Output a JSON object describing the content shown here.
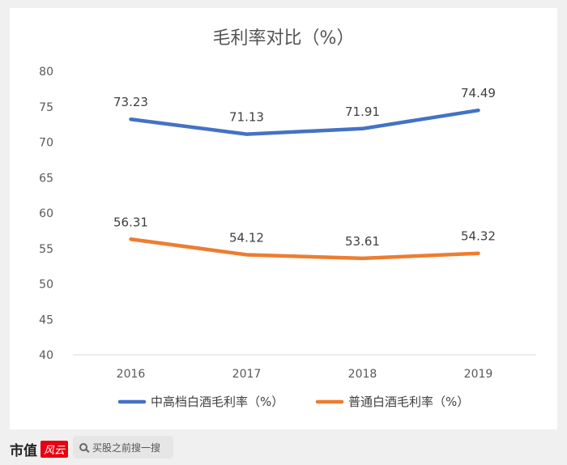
{
  "chart_data": {
    "type": "line",
    "title": "毛利率对比（%）",
    "categories": [
      "2016",
      "2017",
      "2018",
      "2019"
    ],
    "ylim": [
      40,
      80
    ],
    "yticks": [
      40,
      45,
      50,
      55,
      60,
      65,
      70,
      75,
      80
    ],
    "grid": false,
    "legend": "bottom",
    "series": [
      {
        "name": "中高档白酒毛利率（%）",
        "color": "#4472c4",
        "values": [
          73.23,
          71.13,
          71.91,
          74.49
        ]
      },
      {
        "name": "普通白酒毛利率（%）",
        "color": "#ed7d31",
        "values": [
          56.31,
          54.12,
          53.61,
          54.32
        ]
      }
    ]
  },
  "footer": {
    "brand": "市值",
    "brand_mark": "风云",
    "search_placeholder": "买股之前搜一搜"
  }
}
